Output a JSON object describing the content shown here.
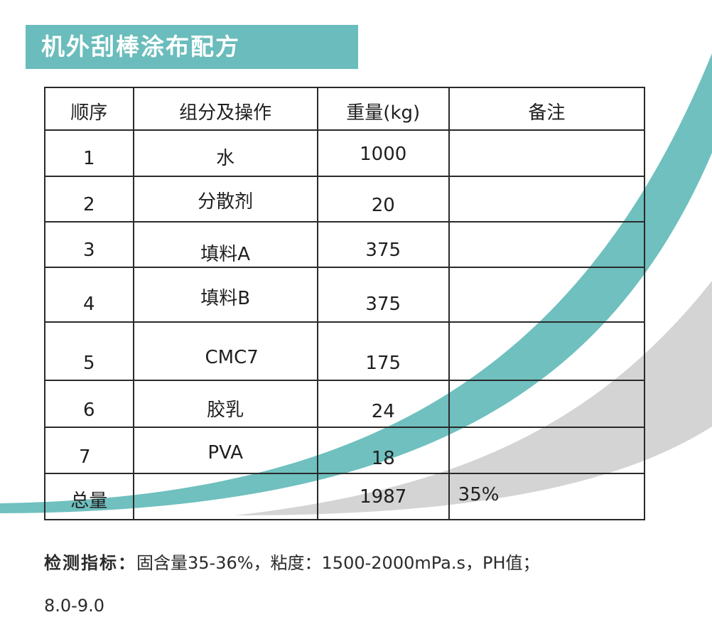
{
  "title": "机外刮棒涂布配方",
  "table": {
    "headers": [
      "顺序",
      "组分及操作",
      "重量(kg)",
      "备注"
    ],
    "rows": [
      {
        "seq": "1",
        "component": "水",
        "weight": "1000",
        "note": ""
      },
      {
        "seq": "2",
        "component": "分散剂",
        "weight": "20",
        "note": ""
      },
      {
        "seq": "3",
        "component": "填料A",
        "weight": "375",
        "note": ""
      },
      {
        "seq": "4",
        "component": "填料B",
        "weight": "375",
        "note": ""
      },
      {
        "seq": "5",
        "component": "CMC7",
        "weight": "175",
        "note": ""
      },
      {
        "seq": "6",
        "component": "胶乳",
        "weight": "24",
        "note": ""
      },
      {
        "seq": "7",
        "component": "PVA",
        "weight": "18",
        "note": ""
      }
    ],
    "total": {
      "label": "总量",
      "component": "",
      "weight": "1987",
      "note": "35%"
    }
  },
  "footer": {
    "label": "检测指标：",
    "line1": "固含量35-36%，粘度：1500-2000mPa.s，PH值；",
    "line2": "8.0-9.0"
  },
  "colors": {
    "accent": "#6bbcbc",
    "swoosh_gray": "#d0d0d0"
  }
}
